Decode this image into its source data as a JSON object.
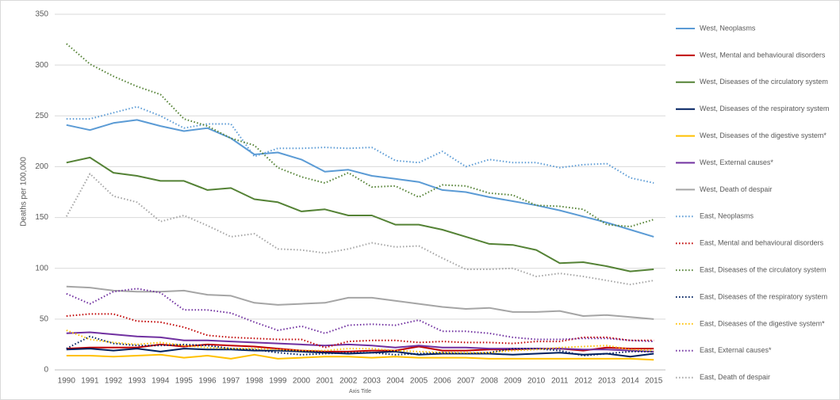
{
  "chart_data": {
    "type": "line",
    "y_label": "Deaths per 100,000",
    "x_label": "Axis Title",
    "categories": [
      "1990",
      "1991",
      "1992",
      "1993",
      "1994",
      "1995",
      "1996",
      "1997",
      "1998",
      "1999",
      "2000",
      "2001",
      "2002",
      "2003",
      "2004",
      "2005",
      "2006",
      "2007",
      "2008",
      "2009",
      "2010",
      "2011",
      "2012",
      "2013",
      "2014",
      "2015"
    ],
    "ylim": [
      0,
      350
    ],
    "yticks": [
      0,
      50,
      100,
      150,
      200,
      250,
      300,
      350
    ],
    "grid": true,
    "legend": "right",
    "series": [
      {
        "name": "West, Neoplasms",
        "color": "#5b9bd5",
        "style": "solid",
        "values": [
          241,
          236,
          243,
          246,
          240,
          235,
          238,
          228,
          212,
          214,
          207,
          195,
          197,
          191,
          188,
          185,
          177,
          175,
          170,
          166,
          162,
          157,
          151,
          145,
          138,
          131
        ]
      },
      {
        "name": "West, Mental and behavioural disorders",
        "color": "#c00000",
        "style": "solid",
        "values": [
          21,
          22,
          22,
          22,
          25,
          23,
          25,
          24,
          23,
          21,
          19,
          18,
          18,
          19,
          19,
          23,
          19,
          19,
          20,
          20,
          21,
          21,
          19,
          22,
          21,
          21
        ]
      },
      {
        "name": "West, Diseases of the circulatory system",
        "color": "#548235",
        "style": "solid",
        "values": [
          204,
          209,
          194,
          191,
          186,
          186,
          177,
          179,
          168,
          165,
          156,
          158,
          152,
          152,
          143,
          143,
          138,
          131,
          124,
          123,
          118,
          105,
          106,
          102,
          97,
          99
        ]
      },
      {
        "name": "West, Diseases of the respiratory system",
        "color": "#002060",
        "style": "solid",
        "values": [
          20,
          21,
          19,
          21,
          18,
          21,
          20,
          20,
          19,
          19,
          18,
          17,
          16,
          17,
          18,
          15,
          16,
          16,
          16,
          15,
          16,
          17,
          15,
          16,
          13,
          16
        ]
      },
      {
        "name": "West, Diseases of the digestive system*",
        "color": "#ffc000",
        "style": "solid",
        "values": [
          14,
          14,
          13,
          14,
          15,
          12,
          14,
          11,
          15,
          11,
          12,
          13,
          13,
          12,
          13,
          12,
          12,
          12,
          11,
          11,
          11,
          11,
          11,
          11,
          11,
          10
        ]
      },
      {
        "name": "West, External causes*",
        "color": "#7030a0",
        "style": "solid",
        "values": [
          36,
          37,
          35,
          33,
          32,
          29,
          29,
          28,
          27,
          26,
          25,
          24,
          25,
          24,
          22,
          24,
          22,
          22,
          21,
          21,
          21,
          21,
          20,
          20,
          19,
          18
        ]
      },
      {
        "name": "West, Death of despair",
        "color": "#a5a5a5",
        "style": "solid",
        "values": [
          82,
          81,
          78,
          77,
          77,
          78,
          74,
          73,
          66,
          64,
          65,
          66,
          71,
          71,
          68,
          65,
          62,
          60,
          61,
          57,
          57,
          58,
          53,
          54,
          52,
          50
        ]
      },
      {
        "name": "East, Neoplasms",
        "color": "#5b9bd5",
        "style": "dotted",
        "values": [
          247,
          247,
          253,
          259,
          250,
          238,
          242,
          242,
          210,
          218,
          218,
          219,
          218,
          219,
          206,
          204,
          215,
          200,
          207,
          204,
          204,
          199,
          202,
          203,
          189,
          184
        ]
      },
      {
        "name": "East, Mental and behavioural disorders",
        "color": "#c00000",
        "style": "dotted",
        "values": [
          53,
          55,
          55,
          48,
          47,
          42,
          34,
          32,
          31,
          30,
          30,
          22,
          28,
          29,
          29,
          27,
          28,
          27,
          27,
          26,
          28,
          28,
          32,
          32,
          29,
          29
        ]
      },
      {
        "name": "East, Diseases of the circulatory system",
        "color": "#548235",
        "style": "dotted",
        "values": [
          321,
          301,
          289,
          279,
          271,
          247,
          240,
          228,
          221,
          199,
          190,
          184,
          194,
          180,
          181,
          170,
          182,
          181,
          174,
          172,
          162,
          161,
          158,
          143,
          141,
          148
        ]
      },
      {
        "name": "East, Diseases of the respiratory system",
        "color": "#002060",
        "style": "dotted",
        "values": [
          21,
          33,
          26,
          24,
          24,
          25,
          24,
          21,
          20,
          17,
          15,
          16,
          17,
          17,
          15,
          16,
          17,
          16,
          17,
          21,
          21,
          19,
          14,
          16,
          18,
          18
        ]
      },
      {
        "name": "East, Diseases of the digestive system*",
        "color": "#ffc000",
        "style": "dotted",
        "values": [
          39,
          30,
          27,
          25,
          27,
          24,
          22,
          21,
          21,
          20,
          19,
          19,
          21,
          21,
          19,
          18,
          17,
          17,
          17,
          19,
          20,
          22,
          23,
          24,
          20,
          19
        ]
      },
      {
        "name": "East, External causes*",
        "color": "#7030a0",
        "style": "dotted",
        "values": [
          75,
          65,
          77,
          80,
          76,
          59,
          59,
          56,
          47,
          39,
          43,
          36,
          44,
          45,
          44,
          49,
          38,
          38,
          36,
          32,
          30,
          30,
          31,
          31,
          29,
          28
        ]
      },
      {
        "name": "East, Death of despair",
        "color": "#a5a5a5",
        "style": "dotted",
        "values": [
          151,
          193,
          171,
          165,
          146,
          152,
          142,
          131,
          134,
          119,
          118,
          115,
          119,
          125,
          121,
          122,
          110,
          99,
          99,
          100,
          92,
          95,
          92,
          88,
          84,
          88
        ]
      }
    ]
  }
}
